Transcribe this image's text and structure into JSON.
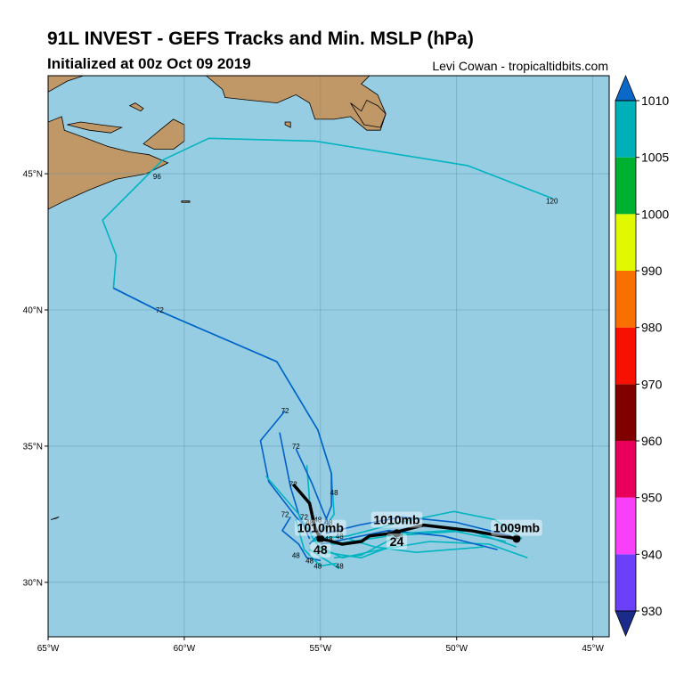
{
  "header": {
    "title": "91L INVEST - GEFS Tracks and Min. MSLP (hPa)",
    "subtitle": "Initialized at 00z Oct 09 2019",
    "credit": "Levi Cowan - tropicaltidbits.com"
  },
  "map": {
    "lon_range": [
      -65,
      -44.4
    ],
    "lat_range": [
      28.0,
      48.6
    ],
    "lon_ticks": [
      {
        "value": -65,
        "label": "65°W"
      },
      {
        "value": -60,
        "label": "60°W"
      },
      {
        "value": -55,
        "label": "55°W"
      },
      {
        "value": -50,
        "label": "50°W"
      },
      {
        "value": -45,
        "label": "45°W"
      }
    ],
    "lat_ticks": [
      {
        "value": 45,
        "label": "45°N"
      },
      {
        "value": 40,
        "label": "40°N"
      },
      {
        "value": 35,
        "label": "35°N"
      },
      {
        "value": 30,
        "label": "30°N"
      }
    ],
    "ocean_color": "#96cde3",
    "land_color": "#c09868"
  },
  "colorbar": {
    "levels": [
      {
        "value": 930,
        "label": "930"
      },
      {
        "value": 940,
        "label": "940"
      },
      {
        "value": 950,
        "label": "950"
      },
      {
        "value": 960,
        "label": "960"
      },
      {
        "value": 970,
        "label": "970"
      },
      {
        "value": 980,
        "label": "980"
      },
      {
        "value": 990,
        "label": "990"
      },
      {
        "value": 1000,
        "label": "1000"
      },
      {
        "value": 1005,
        "label": "1005"
      },
      {
        "value": 1010,
        "label": "1010"
      }
    ],
    "bands": [
      "#6a40f8",
      "#f840f8",
      "#e8005c",
      "#800000",
      "#f81000",
      "#f87000",
      "#e0f800",
      "#00b030",
      "#00b0b8"
    ],
    "under_color": "#1a2b8c",
    "over_color": "#0a68c8"
  },
  "tracks": [
    {
      "color": "#00b4c0",
      "points": [
        [
          -46.5,
          44.1
        ],
        [
          -49.6,
          45.3
        ],
        [
          -55.2,
          46.2
        ],
        [
          -59.1,
          46.3
        ],
        [
          -60.8,
          45.5
        ],
        [
          -63.0,
          43.3
        ],
        [
          -62.5,
          42.0
        ],
        [
          -62.6,
          40.8
        ],
        [
          -61.0,
          40.0
        ],
        [
          -56.6,
          38.1
        ],
        [
          -55.1,
          35.6
        ],
        [
          -54.6,
          34.0
        ],
        [
          -54.5,
          32.5
        ],
        [
          -55.2,
          31.5
        ]
      ]
    },
    {
      "color": "#0060c8",
      "points": [
        [
          -62.6,
          40.8
        ],
        [
          -61.0,
          40.0
        ],
        [
          -56.6,
          38.1
        ],
        [
          -55.1,
          35.6
        ],
        [
          -54.6,
          34.0
        ],
        [
          -54.6,
          32.8
        ],
        [
          -55.0,
          31.8
        ],
        [
          -55.4,
          31.4
        ]
      ]
    },
    {
      "color": "#0060c8",
      "points": [
        [
          -56.3,
          36.3
        ],
        [
          -57.2,
          35.2
        ],
        [
          -56.9,
          33.7
        ],
        [
          -55.9,
          32.4
        ],
        [
          -55.3,
          31.8
        ]
      ]
    },
    {
      "color": "#0060c8",
      "points": [
        [
          -56.5,
          35.5
        ],
        [
          -56.1,
          33.5
        ],
        [
          -55.8,
          32.5
        ],
        [
          -55.4,
          31.6
        ]
      ]
    },
    {
      "color": "#00b4c0",
      "points": [
        [
          -57.0,
          33.9
        ],
        [
          -55.8,
          32.5
        ],
        [
          -55.2,
          31.5
        ],
        [
          -54.8,
          31.0
        ]
      ]
    },
    {
      "color": "#00b4c0",
      "points": [
        [
          -55.5,
          34.3
        ],
        [
          -55.4,
          33.0
        ],
        [
          -55.3,
          32.2
        ]
      ]
    },
    {
      "color": "#0060c8",
      "points": [
        [
          -55.9,
          34.9
        ],
        [
          -55.3,
          33.6
        ],
        [
          -54.9,
          32.6
        ],
        [
          -54.6,
          31.9
        ]
      ]
    },
    {
      "color": "#0060c8",
      "points": [
        [
          -56.1,
          32.4
        ],
        [
          -56.4,
          31.9
        ],
        [
          -55.8,
          31.4
        ],
        [
          -55.5,
          30.9
        ],
        [
          -55.0,
          30.8
        ]
      ]
    },
    {
      "color": "#00b4c0",
      "points": [
        [
          -55.9,
          32.3
        ],
        [
          -55.6,
          31.2
        ],
        [
          -55.0,
          30.6
        ],
        [
          -54.4,
          30.7
        ]
      ]
    },
    {
      "color": "#00b4c0",
      "points": [
        [
          -55.4,
          31.2
        ],
        [
          -54.3,
          30.5
        ]
      ]
    },
    {
      "color": "#00b4c0",
      "points": [
        [
          -47.6,
          31.6
        ],
        [
          -48.6,
          32.3
        ],
        [
          -50.1,
          32.6
        ],
        [
          -52.1,
          32.2
        ],
        [
          -54.0,
          31.7
        ],
        [
          -55.2,
          31.6
        ]
      ]
    },
    {
      "color": "#00b4c0",
      "points": [
        [
          -47.8,
          31.3
        ],
        [
          -49.5,
          31.9
        ],
        [
          -52.5,
          31.7
        ],
        [
          -54.5,
          31.4
        ],
        [
          -55.3,
          31.5
        ]
      ]
    },
    {
      "color": "#00b4c0",
      "points": [
        [
          -47.4,
          30.9
        ],
        [
          -48.8,
          31.4
        ],
        [
          -51.0,
          31.5
        ],
        [
          -52.8,
          31.2
        ],
        [
          -54.2,
          30.9
        ],
        [
          -55.0,
          31.3
        ]
      ]
    },
    {
      "color": "#0060c8",
      "points": [
        [
          -48.0,
          31.7
        ],
        [
          -50.0,
          32.2
        ],
        [
          -52.0,
          32.4
        ],
        [
          -53.6,
          32.1
        ],
        [
          -54.8,
          31.8
        ]
      ]
    },
    {
      "color": "#0060c8",
      "points": [
        [
          -48.5,
          31.2
        ],
        [
          -50.5,
          31.7
        ],
        [
          -52.5,
          31.9
        ],
        [
          -54.0,
          31.6
        ],
        [
          -55.0,
          31.4
        ]
      ]
    },
    {
      "color": "#00b4c0",
      "points": [
        [
          -48.2,
          31.5
        ],
        [
          -50.2,
          31.9
        ],
        [
          -52.0,
          31.8
        ],
        [
          -53.5,
          31.0
        ],
        [
          -54.5,
          30.9
        ]
      ]
    },
    {
      "color": "#00b4c0",
      "points": [
        [
          -49.0,
          31.3
        ],
        [
          -51.5,
          31.1
        ],
        [
          -53.0,
          31.3
        ],
        [
          -54.0,
          31.6
        ]
      ]
    },
    {
      "color": "#00b4c0",
      "points": [
        [
          -52.2,
          31.4
        ],
        [
          -53.5,
          30.9
        ],
        [
          -54.8,
          31.1
        ]
      ]
    }
  ],
  "ensemble_mean": {
    "color": "#000000",
    "points": [
      [
        -56.0,
        33.6
      ],
      [
        -55.4,
        32.9
      ],
      [
        -55.2,
        32.0
      ],
      [
        -55.0,
        31.6
      ],
      [
        -54.2,
        31.4
      ],
      [
        -53.5,
        31.5
      ],
      [
        -53.2,
        31.7
      ],
      [
        -52.4,
        31.8
      ],
      [
        -51.2,
        32.1
      ],
      [
        -49.5,
        31.9
      ],
      [
        -47.8,
        31.6
      ]
    ],
    "markers": [
      [
        -55.0,
        31.6
      ],
      [
        -52.2,
        31.8
      ],
      [
        -47.8,
        31.6
      ]
    ]
  },
  "track_labels": [
    {
      "text": "120",
      "lon": -46.5,
      "lat": 44.0
    },
    {
      "text": "96",
      "lon": -61.0,
      "lat": 44.9
    },
    {
      "text": "72",
      "lon": -60.9,
      "lat": 40.0
    },
    {
      "text": "72",
      "lon": -56.3,
      "lat": 36.3
    },
    {
      "text": "72",
      "lon": -55.9,
      "lat": 35.0
    },
    {
      "text": "72",
      "lon": -56.0,
      "lat": 33.6
    },
    {
      "text": "72",
      "lon": -56.3,
      "lat": 32.5
    },
    {
      "text": "72",
      "lon": -55.6,
      "lat": 32.4
    },
    {
      "text": "48",
      "lon": -54.5,
      "lat": 33.3
    },
    {
      "text": "48",
      "lon": -55.4,
      "lat": 32.2
    },
    {
      "text": "48",
      "lon": -55.1,
      "lat": 32.3
    },
    {
      "text": "48",
      "lon": -54.7,
      "lat": 32.2
    },
    {
      "text": "48",
      "lon": -54.3,
      "lat": 31.7
    },
    {
      "text": "48",
      "lon": -54.7,
      "lat": 31.6
    },
    {
      "text": "48",
      "lon": -55.9,
      "lat": 31.0
    },
    {
      "text": "48",
      "lon": -55.4,
      "lat": 30.8
    },
    {
      "text": "48",
      "lon": -55.1,
      "lat": 30.6
    },
    {
      "text": "48",
      "lon": -54.3,
      "lat": 30.6
    },
    {
      "text": "24",
      "lon": -52.4,
      "lat": 31.8
    },
    {
      "text": "24",
      "lon": -52.1,
      "lat": 31.7
    }
  ],
  "annotations": [
    {
      "text": "1010mb",
      "lon": -52.2,
      "lat": 32.3
    },
    {
      "text": "1010mb",
      "lon": -55.0,
      "lat": 32.0
    },
    {
      "text": "1009mb",
      "lon": -47.8,
      "lat": 32.0
    },
    {
      "text": "48",
      "lon": -55.0,
      "lat": 31.2
    },
    {
      "text": "24",
      "lon": -52.2,
      "lat": 31.5
    }
  ],
  "land": [
    {
      "name": "land-nova-scotia",
      "points": [
        [
          -65,
          48.0
        ],
        [
          -64.3,
          48.4
        ],
        [
          -63.7,
          48.6
        ],
        [
          -65,
          48.6
        ]
      ]
    },
    {
      "name": "land-mainland",
      "points": [
        [
          -65,
          46.9
        ],
        [
          -64.5,
          47.1
        ],
        [
          -64.4,
          46.6
        ],
        [
          -63.6,
          46.3
        ],
        [
          -62.8,
          46.0
        ],
        [
          -62.0,
          45.8
        ],
        [
          -61.3,
          45.7
        ],
        [
          -60.6,
          45.4
        ],
        [
          -61.4,
          45.0
        ],
        [
          -62.5,
          44.8
        ],
        [
          -63.5,
          44.4
        ],
        [
          -64.4,
          44.0
        ],
        [
          -65,
          43.7
        ]
      ]
    },
    {
      "name": "land-pei",
      "points": [
        [
          -64.3,
          46.8
        ],
        [
          -63.5,
          46.6
        ],
        [
          -62.7,
          46.5
        ],
        [
          -62.3,
          46.7
        ],
        [
          -63.1,
          46.8
        ],
        [
          -63.8,
          46.9
        ]
      ]
    },
    {
      "name": "land-cape-breton",
      "points": [
        [
          -61.5,
          46.1
        ],
        [
          -60.9,
          46.6
        ],
        [
          -60.4,
          47.0
        ],
        [
          -60.0,
          46.8
        ],
        [
          -60.0,
          46.2
        ],
        [
          -60.4,
          45.9
        ],
        [
          -61.1,
          45.9
        ]
      ]
    },
    {
      "name": "land-newfoundland",
      "points": [
        [
          -59.2,
          48.6
        ],
        [
          -58.6,
          48.1
        ],
        [
          -58.5,
          47.8
        ],
        [
          -57.6,
          47.7
        ],
        [
          -56.6,
          47.6
        ],
        [
          -55.9,
          47.9
        ],
        [
          -55.4,
          47.6
        ],
        [
          -55.2,
          47.0
        ],
        [
          -54.5,
          47.0
        ],
        [
          -53.9,
          47.1
        ],
        [
          -53.3,
          46.6
        ],
        [
          -52.8,
          46.6
        ],
        [
          -52.6,
          47.2
        ],
        [
          -52.9,
          47.9
        ],
        [
          -53.5,
          48.3
        ],
        [
          -53.2,
          48.6
        ]
      ]
    },
    {
      "name": "land-avalon",
      "points": [
        [
          -53.9,
          47.6
        ],
        [
          -53.4,
          46.8
        ],
        [
          -52.8,
          46.7
        ],
        [
          -52.6,
          47.2
        ],
        [
          -52.9,
          47.5
        ],
        [
          -53.3,
          47.7
        ],
        [
          -53.5,
          47.3
        ]
      ]
    },
    {
      "name": "land-anticosti",
      "points": [
        [
          -63.8,
          49.0
        ],
        [
          -62.0,
          48.6
        ],
        [
          -61.8,
          48.7
        ],
        [
          -63.3,
          49.2
        ]
      ]
    },
    {
      "name": "land-magdalen",
      "points": [
        [
          -62.0,
          47.5
        ],
        [
          -61.6,
          47.3
        ],
        [
          -61.5,
          47.4
        ],
        [
          -61.8,
          47.6
        ]
      ]
    },
    {
      "name": "land-stpierre",
      "points": [
        [
          -56.3,
          46.8
        ],
        [
          -56.1,
          46.7
        ],
        [
          -56.1,
          46.9
        ],
        [
          -56.3,
          46.9
        ]
      ]
    },
    {
      "name": "land-sable",
      "points": [
        [
          -60.1,
          43.95
        ],
        [
          -59.8,
          43.95
        ],
        [
          -59.8,
          44.0
        ],
        [
          -60.1,
          44.0
        ]
      ]
    },
    {
      "name": "land-bermuda",
      "points": [
        [
          -64.9,
          32.3
        ],
        [
          -64.6,
          32.4
        ],
        [
          -64.7,
          32.35
        ]
      ]
    }
  ]
}
